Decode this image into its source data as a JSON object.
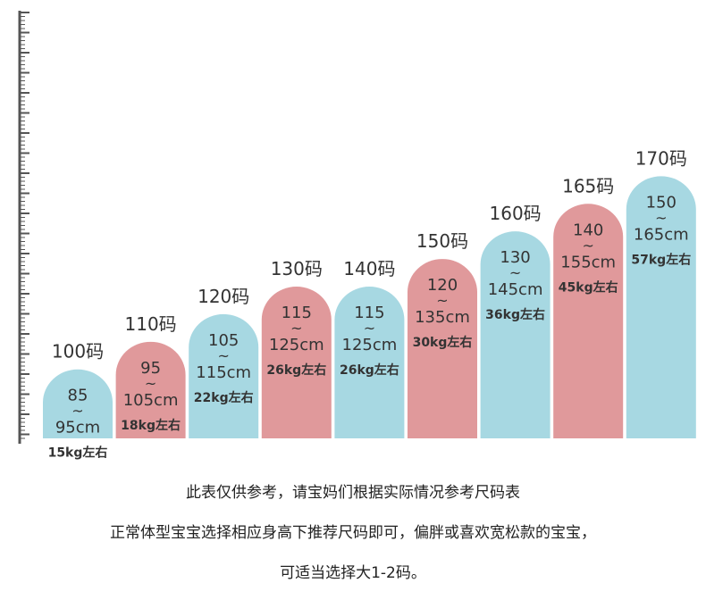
{
  "chart_data": {
    "type": "bar",
    "categories": [
      "100码",
      "110码",
      "120码",
      "130码",
      "140码",
      "150码",
      "160码",
      "165码",
      "170码"
    ],
    "series": [
      {
        "values": [
          85,
          95,
          105,
          115,
          115,
          120,
          130,
          140,
          150
        ]
      },
      {
        "values": [
          95,
          105,
          115,
          125,
          125,
          135,
          145,
          155,
          165
        ]
      }
    ],
    "bars": [
      {
        "size": "100码",
        "low": "85",
        "high": "95cm",
        "weight": "15kg左右",
        "color": "#a7d8e2"
      },
      {
        "size": "110码",
        "low": "95",
        "high": "105cm",
        "weight": "18kg左右",
        "color": "#e0999b"
      },
      {
        "size": "120码",
        "low": "105",
        "high": "115cm",
        "weight": "22kg左右",
        "color": "#a7d8e2"
      },
      {
        "size": "130码",
        "low": "115",
        "high": "125cm",
        "weight": "26kg左右",
        "color": "#e0999b"
      },
      {
        "size": "140码",
        "low": "115",
        "high": "125cm",
        "weight": "26kg左右",
        "color": "#a7d8e2"
      },
      {
        "size": "150码",
        "low": "120",
        "high": "135cm",
        "weight": "30kg左右",
        "color": "#e0999b"
      },
      {
        "size": "160码",
        "low": "130",
        "high": "145cm",
        "weight": "36kg左右",
        "color": "#a7d8e2"
      },
      {
        "size": "165码",
        "low": "140",
        "high": "155cm",
        "weight": "45kg左右",
        "color": "#e0999b"
      },
      {
        "size": "170码",
        "low": "150",
        "high": "165cm",
        "weight": "57kg左右",
        "color": "#a7d8e2"
      }
    ],
    "tilde": "~",
    "ylim": [
      70,
      180
    ],
    "grid": false
  },
  "notes": {
    "line1": "此表仅供参考，请宝妈们根据实际情况参考尺码表",
    "line2": "正常体型宝宝选择相应身高下推荐尺码即可，偏胖或喜欢宽松款的宝宝，",
    "line3": "可适当选择大1-2码。"
  }
}
